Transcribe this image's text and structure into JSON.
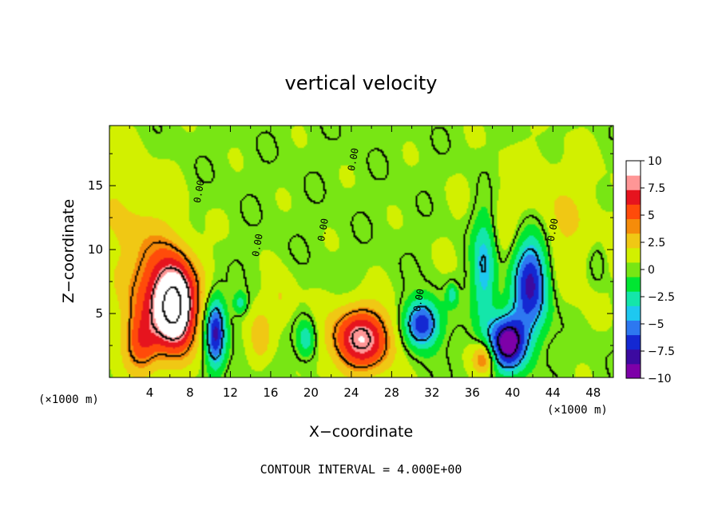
{
  "chart_data": {
    "type": "heatmap",
    "title": "vertical velocity",
    "xlabel": "X−coordinate",
    "ylabel": "Z−coordinate",
    "x_unit": "(×1000 m)",
    "x_ticks": [
      "4",
      "8",
      "12",
      "16",
      "20",
      "24",
      "28",
      "32",
      "36",
      "40",
      "44",
      "48"
    ],
    "y_ticks": [
      "5",
      "10",
      "15"
    ],
    "xlim": [
      0,
      50
    ],
    "ylim": [
      0,
      19.7
    ],
    "colorbar": {
      "ticks": [
        "10",
        "7.5",
        "5",
        "2.5",
        "0",
        "−2.5",
        "−5",
        "−7.5",
        "−10"
      ],
      "range": [
        -10,
        10
      ],
      "colors": [
        "#7d00a8",
        "#3c0aa0",
        "#1428d2",
        "#2d78f0",
        "#1ec8f0",
        "#14e6aa",
        "#00e632",
        "#78e614",
        "#d2f000",
        "#f0c814",
        "#f58c0a",
        "#ff4b0a",
        "#e6141e",
        "#ff9696",
        "#ffffff"
      ]
    },
    "contour_label": "0.00",
    "footer": "CONTOUR INTERVAL = 4.000E+00",
    "features": [
      {
        "name": "updraft",
        "x": 6.5,
        "z": 5.5,
        "sx": 1.4,
        "sz": 2.3,
        "amp": 10
      },
      {
        "name": "updraft",
        "x": 5.0,
        "z": 6.5,
        "sx": 2.6,
        "sz": 3.2,
        "amp": 4.5
      },
      {
        "name": "updraft",
        "x": 3.2,
        "z": 2.5,
        "sx": 1.2,
        "sz": 1.6,
        "amp": 4
      },
      {
        "name": "updraft",
        "x": 25.0,
        "z": 3.0,
        "sx": 2.2,
        "sz": 1.8,
        "amp": 8
      },
      {
        "name": "updraft",
        "x": 37.2,
        "z": 1.5,
        "sx": 0.8,
        "sz": 0.9,
        "amp": 5
      },
      {
        "name": "updraft",
        "x": 43.0,
        "z": 11.5,
        "sx": 4.5,
        "sz": 4.0,
        "amp": 2
      },
      {
        "name": "updraft",
        "x": 1.5,
        "z": 12.0,
        "sx": 3.0,
        "sz": 4.0,
        "amp": 1.5
      },
      {
        "name": "downdraft",
        "x": 10.5,
        "z": 3.5,
        "sx": 0.7,
        "sz": 1.9,
        "amp": -8
      },
      {
        "name": "downdraft",
        "x": 19.5,
        "z": 3.0,
        "sx": 0.7,
        "sz": 1.1,
        "amp": -3.5
      },
      {
        "name": "downdraft",
        "x": 31.0,
        "z": 4.2,
        "sx": 1.2,
        "sz": 1.3,
        "amp": -8
      },
      {
        "name": "downdraft",
        "x": 39.5,
        "z": 2.7,
        "sx": 1.3,
        "sz": 1.5,
        "amp": -10
      },
      {
        "name": "downdraft",
        "x": 41.8,
        "z": 7.5,
        "sx": 1.3,
        "sz": 2.8,
        "amp": -9
      },
      {
        "name": "downdraft",
        "x": 37.2,
        "z": 8.5,
        "sx": 0.9,
        "sz": 3.3,
        "amp": -5
      },
      {
        "name": "downdraft",
        "x": 13.0,
        "z": 5.8,
        "sx": 0.5,
        "sz": 0.6,
        "amp": -3
      },
      {
        "name": "downdraft",
        "x": 34.0,
        "z": 6.5,
        "sx": 0.4,
        "sz": 0.6,
        "amp": -3
      },
      {
        "name": "updraft",
        "x": 15.0,
        "z": 3.0,
        "sx": 0.8,
        "sz": 1.6,
        "amp": 2.5
      },
      {
        "name": "updraft",
        "x": 17.0,
        "z": 6.0,
        "sx": 1.0,
        "sz": 1.5,
        "amp": 2
      },
      {
        "name": "downdraft",
        "x": 48.5,
        "z": 9.0,
        "sx": 0.6,
        "sz": 1.2,
        "amp": -1.5
      }
    ]
  }
}
